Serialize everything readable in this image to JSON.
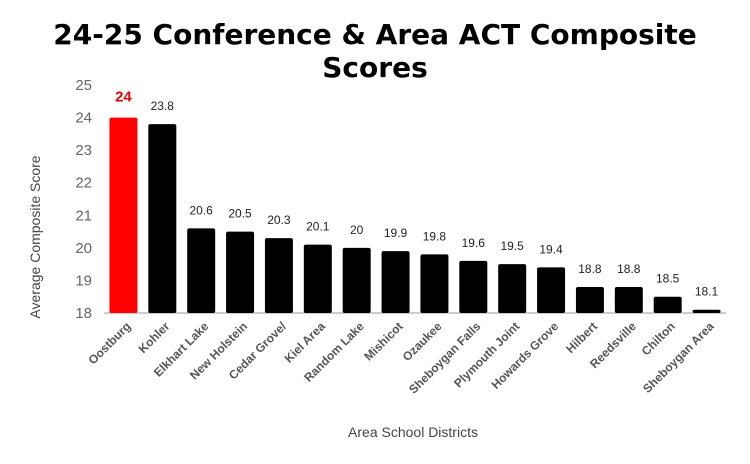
{
  "chart_data": {
    "type": "bar",
    "title": "24-25 Conference & Area ACT Composite Scores",
    "xlabel": "Area School Districts",
    "ylabel": "Average Composite Score",
    "ylim": [
      18,
      25
    ],
    "yticks": [
      "18",
      "19",
      "20",
      "21",
      "22",
      "23",
      "24",
      "25"
    ],
    "grid": false,
    "categories": [
      "Oostburg",
      "Kohler",
      "Elkhart Lake",
      "New Holstein",
      "Cedar Grove/",
      "Kiel Area",
      "Random Lake",
      "Mishicot",
      "Ozaukee",
      "Sheboygan Falls",
      "Plymouth Joint",
      "Howards Grove",
      "Hilbert",
      "Reedsville",
      "Chilton",
      "Sheboygan Area"
    ],
    "values": [
      24,
      23.8,
      20.6,
      20.5,
      20.3,
      20.1,
      20,
      19.9,
      19.8,
      19.6,
      19.5,
      19.4,
      18.8,
      18.8,
      18.5,
      18.1
    ],
    "data_labels": [
      "24",
      "23.8",
      "20.6",
      "20.5",
      "20.3",
      "20.1",
      "20",
      "19.9",
      "19.8",
      "19.6",
      "19.5",
      "19.4",
      "18.8",
      "18.8",
      "18.5",
      "18.1"
    ],
    "bar_color": "#000000",
    "highlight_color": "#ff0000",
    "highlight_index": 0
  }
}
